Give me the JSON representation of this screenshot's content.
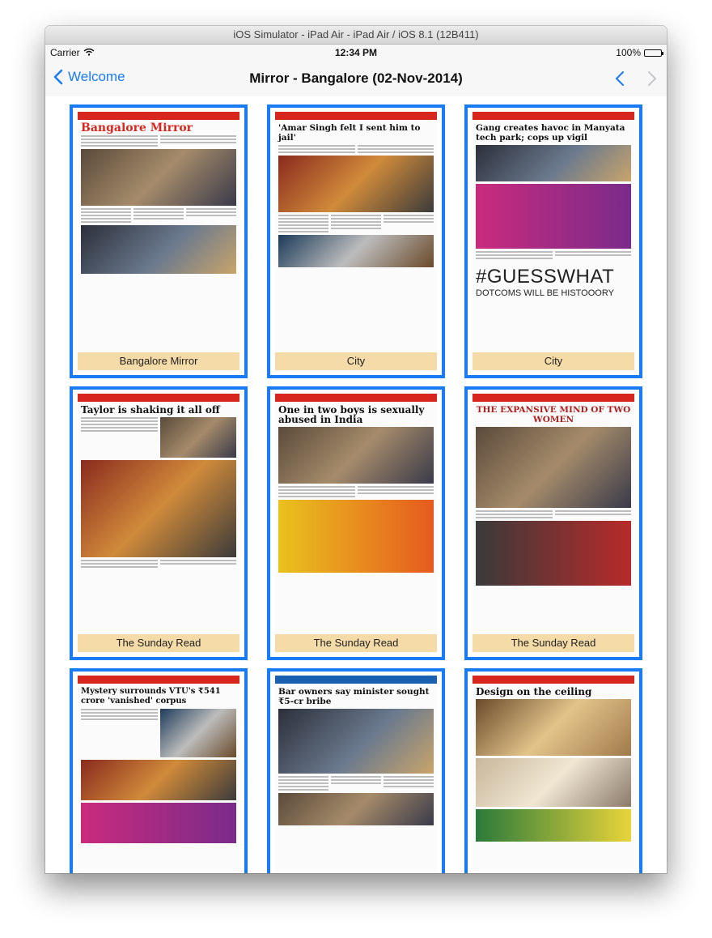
{
  "window": {
    "title": "iOS Simulator - iPad Air - iPad Air / iOS 8.1 (12B411)"
  },
  "status": {
    "carrier": "Carrier",
    "time": "12:34 PM",
    "battery": "100%"
  },
  "nav": {
    "back_label": "Welcome",
    "title": "Mirror - Bangalore (02-Nov-2014)"
  },
  "accent": "#1a7cf5",
  "tiles": [
    {
      "caption": "Bangalore Mirror",
      "headline": "Bangalore Mirror"
    },
    {
      "caption": "City",
      "headline": "'Amar Singh felt I sent him to jail'"
    },
    {
      "caption": "City",
      "headline": "Gang creates havoc in Manyata tech park; cops up vigil",
      "promo_big": "#GUESSWHAT",
      "promo_small": "DOTCOMS WILL BE HISTOOORY"
    },
    {
      "caption": "The Sunday Read",
      "headline": "Taylor is shaking it all off"
    },
    {
      "caption": "The Sunday Read",
      "headline": "One in two boys is sexually abused in India"
    },
    {
      "caption": "The Sunday Read",
      "headline": "THE EXPANSIVE MIND OF TWO WOMEN"
    },
    {
      "caption": "",
      "headline": "Mystery surrounds VTU's ₹541 crore 'vanished' corpus"
    },
    {
      "caption": "",
      "headline": "Bar owners say minister sought ₹5-cr bribe"
    },
    {
      "caption": "",
      "headline": "Design on the ceiling"
    }
  ]
}
